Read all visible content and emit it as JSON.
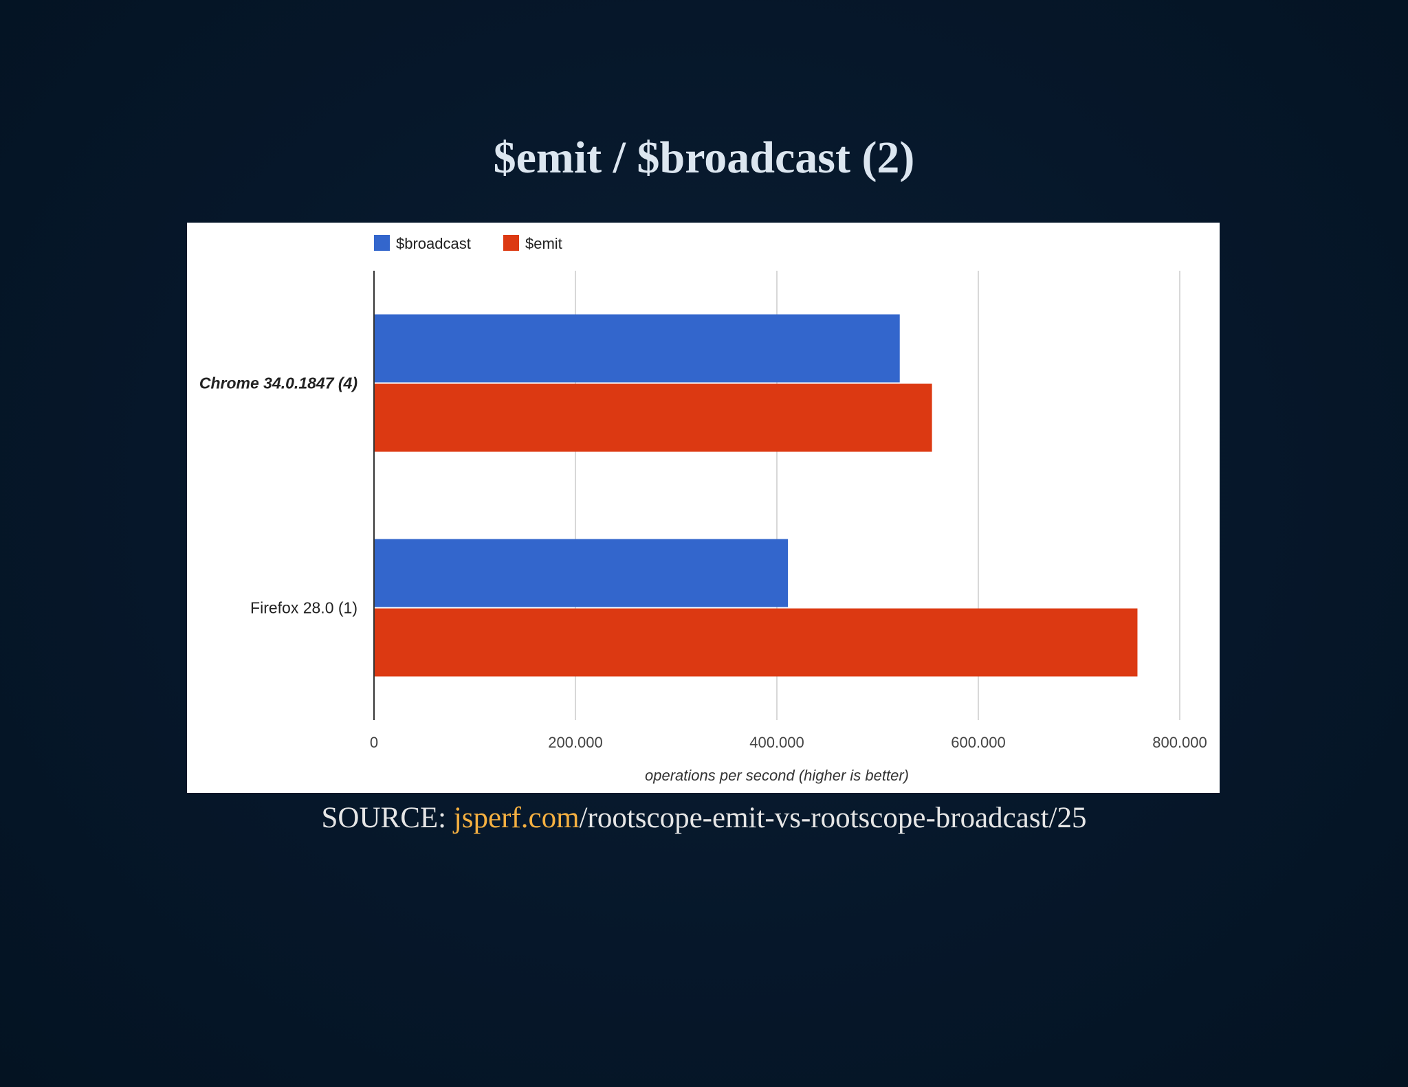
{
  "slide": {
    "title": "$emit / $broadcast (2)",
    "source_prefix": "SOURCE: ",
    "source_link": "jsperf.com",
    "source_rest": "/rootscope-emit-vs-rootscope-broadcast/25"
  },
  "colors": {
    "broadcast": "#3366cc",
    "emit": "#dc3912"
  },
  "chart_data": {
    "type": "bar",
    "orientation": "horizontal",
    "categories": [
      "Chrome 34.0.1847 (4)",
      "Firefox 28.0 (1)"
    ],
    "category_emphasis": [
      true,
      false
    ],
    "series": [
      {
        "name": "$broadcast",
        "values": [
          522000,
          411000
        ]
      },
      {
        "name": "$emit",
        "values": [
          554000,
          758000
        ]
      }
    ],
    "xlabel": "operations per second (higher is better)",
    "ylabel": "",
    "xlim": [
      0,
      800000
    ],
    "xticks": [
      0,
      200000,
      400000,
      600000,
      800000
    ],
    "xtick_labels": [
      "0",
      "200.000",
      "400.000",
      "600.000",
      "800.000"
    ],
    "grid": true,
    "legend_position": "top-left"
  }
}
